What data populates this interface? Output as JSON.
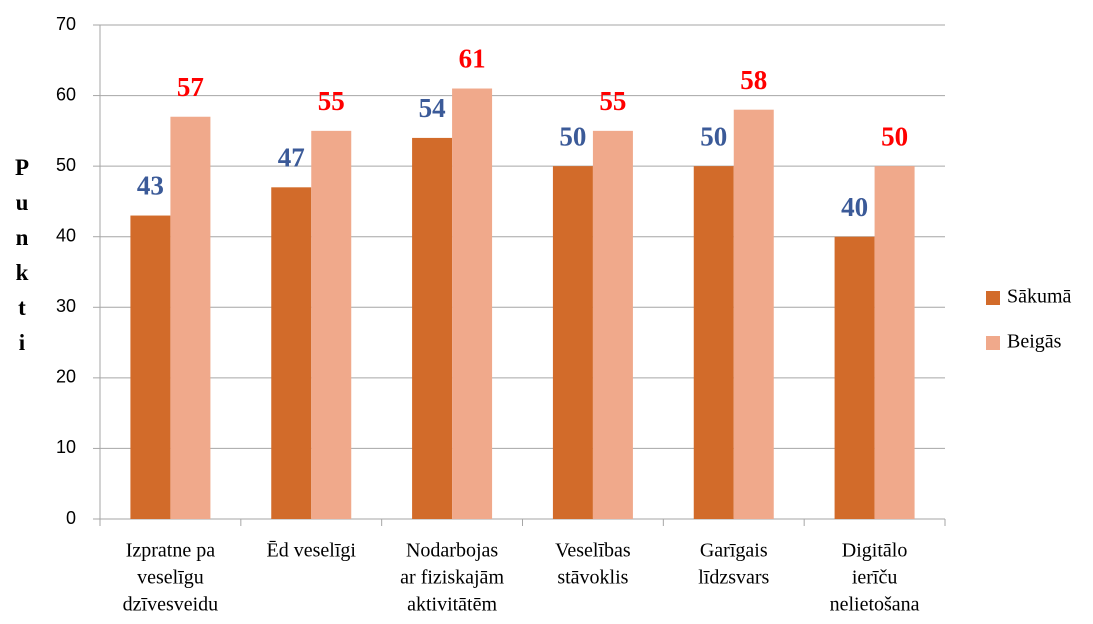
{
  "chart_data": {
    "type": "bar",
    "y_label": "Punkti",
    "categories": [
      [
        "Izpratne pa",
        "veselīgu",
        "dzīvesveidu"
      ],
      [
        "Ēd veselīgi"
      ],
      [
        "Nodarbojas",
        "ar fiziskajām",
        "aktivitātēm"
      ],
      [
        "Veselības",
        "stāvoklis"
      ],
      [
        "Garīgais",
        "līdzsvars"
      ],
      [
        "Digitālo",
        "ierīču",
        "nelietošana"
      ]
    ],
    "series": [
      {
        "name": "Sākumā",
        "color": "#d26b2a",
        "label_color": "#3b5a98",
        "values": [
          43,
          47,
          54,
          50,
          50,
          40
        ]
      },
      {
        "name": "Beigās",
        "color": "#f0a98b",
        "label_color": "#ff0000",
        "values": [
          57,
          55,
          61,
          55,
          58,
          50
        ]
      }
    ],
    "ylim": [
      0,
      70
    ],
    "yticks": [
      0,
      10,
      20,
      30,
      40,
      50,
      60,
      70
    ],
    "grid": true,
    "legend": "right"
  }
}
